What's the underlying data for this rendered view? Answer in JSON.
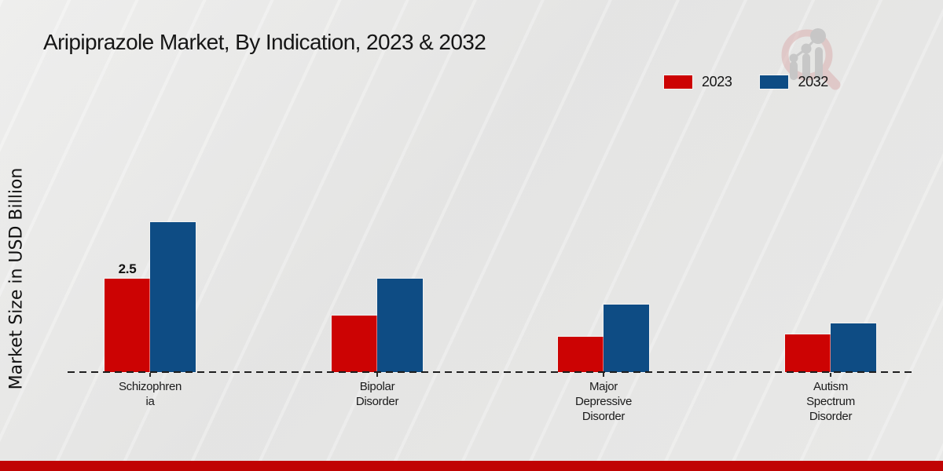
{
  "page": {
    "title": "Aripiprazole Market, By Indication, 2023 & 2032",
    "ylabel": "Market Size in USD Billion",
    "background_color": "#e9e9e8",
    "footer_accent_color": "#c00303"
  },
  "legend": {
    "position": "top-right",
    "items": [
      {
        "label": "2023",
        "color": "#cc0303"
      },
      {
        "label": "2032",
        "color": "#0e4c84"
      }
    ]
  },
  "watermark": {
    "icon": "magnifier-bar-chart-logo",
    "ring_color": "#dbb1b1",
    "glyph_color": "#c6c6c6"
  },
  "chart_data": {
    "type": "bar",
    "title": "Aripiprazole Market, By Indication, 2023 & 2032",
    "xlabel": "",
    "ylabel": "Market Size in USD Billion",
    "categories": [
      "Schizophrenia",
      "Bipolar Disorder",
      "Major Depressive Disorder",
      "Autism Spectrum Disorder"
    ],
    "category_label_lines": [
      [
        "Schizophren",
        "ia"
      ],
      [
        "Bipolar",
        "Disorder"
      ],
      [
        "Major",
        "Depressive",
        "Disorder"
      ],
      [
        "Autism",
        "Spectrum",
        "Disorder"
      ]
    ],
    "series": [
      {
        "name": "2023",
        "color": "#cc0303",
        "values": [
          2.5,
          1.5,
          0.95,
          1.0
        ]
      },
      {
        "name": "2032",
        "color": "#0e4c84",
        "values": [
          4.0,
          2.5,
          1.8,
          1.3
        ]
      }
    ],
    "ylim": [
      0,
      4.5
    ],
    "grid": false,
    "axis_line_style": "dashed",
    "legend_position": "top-right",
    "data_labels": [
      {
        "series_index": 0,
        "category_index": 0,
        "text": "2.5"
      }
    ]
  }
}
